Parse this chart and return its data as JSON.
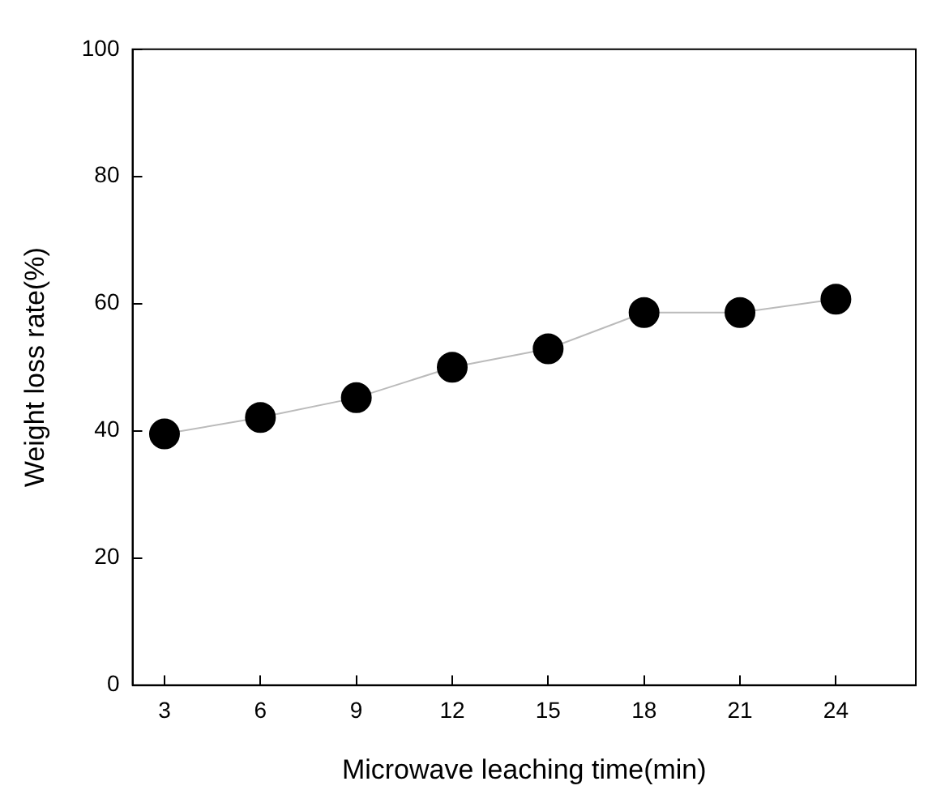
{
  "chart_data": {
    "type": "line",
    "xlabel": "Microwave leaching time(min)",
    "ylabel": "Weight loss rate(%)",
    "x": [
      3,
      6,
      9,
      12,
      15,
      18,
      21,
      24
    ],
    "series": [
      {
        "color": "#000000",
        "values": [
          39.5,
          42.1,
          45.2,
          50,
          52.9,
          58.6,
          58.6,
          60.7
        ]
      }
    ],
    "xlim": [
      2,
      26.5
    ],
    "xticks": [
      3,
      6,
      9,
      12,
      15,
      18,
      21,
      24
    ],
    "ylim": [
      0,
      100
    ],
    "yticks": [
      0,
      20,
      40,
      60,
      80,
      100
    ],
    "grid": false,
    "legend": false,
    "marker": "circle",
    "line_style": "solid"
  }
}
